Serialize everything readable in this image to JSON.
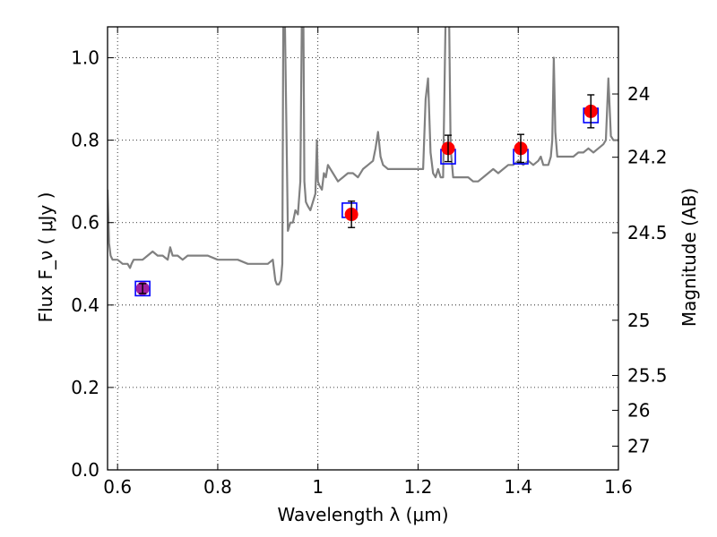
{
  "chart_data": {
    "type": "scatter",
    "title": "",
    "xlabel": "Wavelength  λ (μm)",
    "ylabel": "Flux  F_ν  ( μJy )",
    "y2label": "Magnitude (AB)",
    "xlim": [
      0.58,
      1.6
    ],
    "ylim": [
      0.0,
      1.075
    ],
    "grid": true,
    "x_ticks": [
      0.6,
      0.8,
      1.0,
      1.2,
      1.4,
      1.6
    ],
    "x_tick_labels": [
      "0.6",
      "0.8",
      "1",
      "1.2",
      "1.4",
      "1.6"
    ],
    "y_ticks": [
      0.0,
      0.2,
      0.4,
      0.6,
      0.8,
      1.0
    ],
    "y_tick_labels": [
      "0.0",
      "0.2",
      "0.4",
      "0.6",
      "0.8",
      "1.0"
    ],
    "y2_ticks": [
      24,
      24.2,
      24.5,
      25,
      25.5,
      26,
      27
    ],
    "y2_tick_labels": [
      "24",
      "24.2",
      "24.5",
      "25",
      "25.5",
      "26",
      "27"
    ],
    "colors": {
      "spectrum": "#808080",
      "model_box": "#0000ff",
      "observed": "#ff0000",
      "observed_first": "#a020a0",
      "errorbar": "#000000"
    },
    "series": [
      {
        "type": "line",
        "x": [
          0.58,
          0.583,
          0.586,
          0.59,
          0.6,
          0.61,
          0.62,
          0.625,
          0.628,
          0.632,
          0.64,
          0.65,
          0.66,
          0.67,
          0.68,
          0.69,
          0.7,
          0.705,
          0.71,
          0.72,
          0.73,
          0.74,
          0.75,
          0.76,
          0.78,
          0.8,
          0.82,
          0.84,
          0.86,
          0.88,
          0.9,
          0.91,
          0.915,
          0.918,
          0.922,
          0.926,
          0.929,
          0.931,
          0.934,
          0.94,
          0.945,
          0.95,
          0.955,
          0.96,
          0.965,
          0.968,
          0.971,
          0.973,
          0.976,
          0.98,
          0.985,
          0.99,
          0.995,
          0.998,
          1.0,
          1.003,
          1.008,
          1.012,
          1.016,
          1.02,
          1.025,
          1.03,
          1.04,
          1.05,
          1.06,
          1.07,
          1.08,
          1.09,
          1.1,
          1.11,
          1.115,
          1.12,
          1.125,
          1.13,
          1.14,
          1.15,
          1.16,
          1.17,
          1.18,
          1.19,
          1.2,
          1.21,
          1.215,
          1.22,
          1.225,
          1.23,
          1.235,
          1.24,
          1.245,
          1.25,
          1.255,
          1.258,
          1.262,
          1.265,
          1.27,
          1.28,
          1.29,
          1.3,
          1.31,
          1.32,
          1.33,
          1.34,
          1.35,
          1.36,
          1.37,
          1.38,
          1.39,
          1.4,
          1.41,
          1.42,
          1.43,
          1.44,
          1.445,
          1.45,
          1.455,
          1.46,
          1.465,
          1.468,
          1.471,
          1.474,
          1.478,
          1.49,
          1.5,
          1.51,
          1.52,
          1.53,
          1.54,
          1.55,
          1.56,
          1.57,
          1.575,
          1.58,
          1.585,
          1.59,
          1.6
        ],
        "y": [
          0.68,
          0.55,
          0.52,
          0.51,
          0.51,
          0.5,
          0.5,
          0.49,
          0.5,
          0.51,
          0.51,
          0.51,
          0.52,
          0.53,
          0.52,
          0.52,
          0.51,
          0.54,
          0.52,
          0.52,
          0.51,
          0.52,
          0.52,
          0.52,
          0.52,
          0.51,
          0.51,
          0.51,
          0.5,
          0.5,
          0.5,
          0.51,
          0.46,
          0.45,
          0.45,
          0.46,
          0.5,
          1.1,
          1.1,
          0.58,
          0.6,
          0.6,
          0.63,
          0.62,
          0.7,
          1.1,
          1.1,
          0.7,
          0.65,
          0.64,
          0.63,
          0.65,
          0.67,
          0.8,
          0.7,
          0.69,
          0.68,
          0.72,
          0.71,
          0.74,
          0.73,
          0.72,
          0.7,
          0.71,
          0.72,
          0.72,
          0.71,
          0.73,
          0.74,
          0.75,
          0.78,
          0.82,
          0.76,
          0.74,
          0.73,
          0.73,
          0.73,
          0.73,
          0.73,
          0.73,
          0.73,
          0.73,
          0.9,
          0.95,
          0.77,
          0.72,
          0.71,
          0.73,
          0.71,
          0.71,
          1.1,
          1.1,
          1.1,
          0.78,
          0.71,
          0.71,
          0.71,
          0.71,
          0.7,
          0.7,
          0.71,
          0.72,
          0.73,
          0.72,
          0.73,
          0.74,
          0.74,
          0.75,
          0.74,
          0.75,
          0.74,
          0.75,
          0.76,
          0.74,
          0.74,
          0.74,
          0.76,
          0.8,
          1.0,
          0.82,
          0.76,
          0.76,
          0.76,
          0.76,
          0.77,
          0.77,
          0.78,
          0.77,
          0.78,
          0.79,
          0.8,
          0.95,
          0.81,
          0.8,
          0.8
        ]
      },
      {
        "type": "scatter",
        "marker": "square",
        "x": [
          0.65,
          1.063,
          1.26,
          1.405,
          1.545
        ],
        "y": [
          0.44,
          0.63,
          0.76,
          0.76,
          0.86
        ]
      },
      {
        "type": "scatter",
        "marker": "circle",
        "x": [
          0.65,
          1.067,
          1.26,
          1.405,
          1.545
        ],
        "y": [
          0.44,
          0.62,
          0.78,
          0.78,
          0.87
        ],
        "yerr": [
          0.012,
          0.032,
          0.032,
          0.034,
          0.04
        ]
      }
    ]
  }
}
